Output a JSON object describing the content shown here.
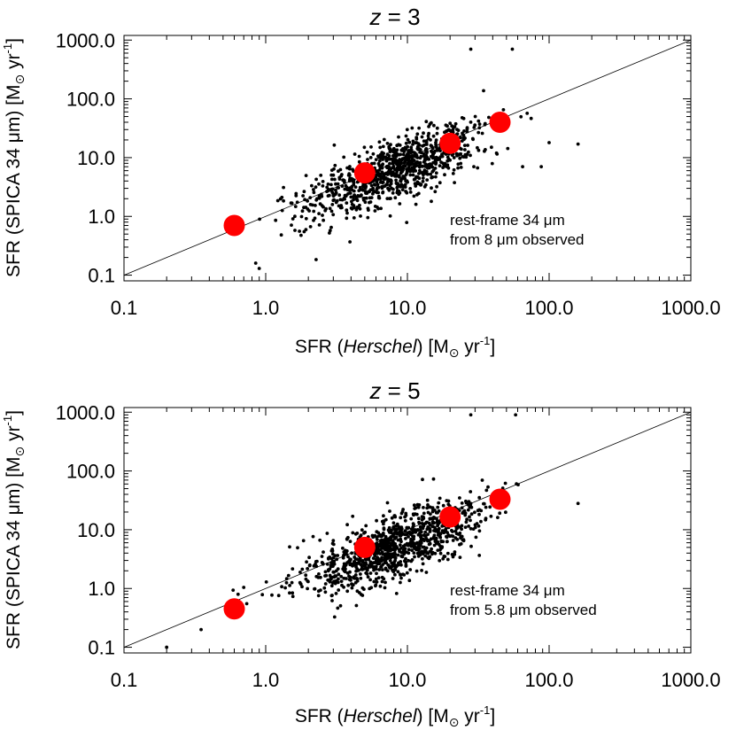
{
  "chart_data": [
    {
      "type": "scatter",
      "title_var": "z",
      "title_eq": " = 3",
      "xlabel": {
        "pre": "SFR (",
        "italic": "Herschel",
        "post": ") [M",
        "sun": "⊙",
        "unit": " yr",
        "exp": "-1",
        "close": "]"
      },
      "ylabel": {
        "pre": "SFR (SPICA 34 μm) [M",
        "sun": "⊙",
        "unit": " yr",
        "exp": "-1",
        "close": "]"
      },
      "xscale": "log",
      "yscale": "log",
      "xlim": [
        0.1,
        1000.0
      ],
      "ylim": [
        0.08,
        1200.0
      ],
      "x_ticks": [
        "0.1",
        "1.0",
        "10.0",
        "100.0",
        "1000.0"
      ],
      "y_ticks": [
        "0.1",
        "1.0",
        "10.0",
        "100.0",
        "1000.0"
      ],
      "one_to_one_line": true,
      "annotation": [
        "rest-frame 34 μm",
        "from 8 μm observed"
      ],
      "scatter_seed": 12345,
      "scatter_count": 950,
      "scatter_slope": 0.93,
      "scatter_intercept_log": -0.06,
      "scatter_sigma_dex": 0.24,
      "outliers": [
        [
          28,
          700
        ],
        [
          55,
          700
        ],
        [
          100,
          18
        ],
        [
          160,
          17
        ],
        [
          65,
          7
        ],
        [
          88,
          7
        ],
        [
          0.9,
          0.13
        ],
        [
          0.85,
          0.16
        ]
      ],
      "median_points": [
        {
          "x": 0.6,
          "y": 0.7
        },
        {
          "x": 5.0,
          "y": 5.5
        },
        {
          "x": 20.0,
          "y": 17.5
        },
        {
          "x": 45.0,
          "y": 40.0
        }
      ]
    },
    {
      "type": "scatter",
      "title_var": "z",
      "title_eq": " = 5",
      "xlabel": {
        "pre": "SFR (",
        "italic": "Herschel",
        "post": ") [M",
        "sun": "⊙",
        "unit": " yr",
        "exp": "-1",
        "close": "]"
      },
      "ylabel": {
        "pre": "SFR (SPICA 34 μm) [M",
        "sun": "⊙",
        "unit": " yr",
        "exp": "-1",
        "close": "]"
      },
      "xscale": "log",
      "yscale": "log",
      "xlim": [
        0.1,
        1000.0
      ],
      "ylim": [
        0.08,
        1200.0
      ],
      "x_ticks": [
        "0.1",
        "1.0",
        "10.0",
        "100.0",
        "1000.0"
      ],
      "y_ticks": [
        "0.1",
        "1.0",
        "10.0",
        "100.0",
        "1000.0"
      ],
      "one_to_one_line": true,
      "annotation": [
        "rest-frame 34 μm",
        "from 5.8 μm observed"
      ],
      "scatter_seed": 67890,
      "scatter_count": 1000,
      "scatter_slope": 0.9,
      "scatter_intercept_log": -0.12,
      "scatter_sigma_dex": 0.26,
      "outliers": [
        [
          28,
          900
        ],
        [
          58,
          900
        ],
        [
          160,
          28
        ],
        [
          0.2,
          0.1
        ],
        [
          0.35,
          0.2
        ]
      ],
      "median_points": [
        {
          "x": 0.6,
          "y": 0.45
        },
        {
          "x": 5.0,
          "y": 5.0
        },
        {
          "x": 20.0,
          "y": 16.5
        },
        {
          "x": 45.0,
          "y": 33.0
        }
      ]
    }
  ],
  "colors": {
    "median_marker": "#ff0000",
    "scatter_point": "#000000",
    "axis": "#000000",
    "background": "#ffffff"
  }
}
